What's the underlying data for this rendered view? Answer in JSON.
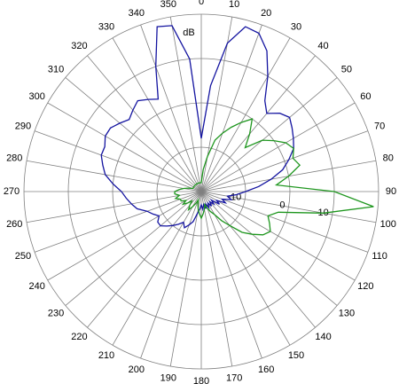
{
  "chart_data": {
    "type": "polar",
    "r_label": "dB",
    "rlim": [
      -20,
      20
    ],
    "rticks": [
      -10,
      0,
      10
    ],
    "thetaticks": [
      0,
      10,
      20,
      30,
      40,
      50,
      60,
      70,
      80,
      90,
      100,
      110,
      120,
      130,
      140,
      150,
      160,
      170,
      180,
      190,
      200,
      210,
      220,
      230,
      240,
      250,
      260,
      270,
      280,
      290,
      300,
      310,
      320,
      330,
      340,
      350
    ],
    "theta": [
      0,
      5,
      10,
      15,
      20,
      25,
      30,
      35,
      40,
      45,
      50,
      55,
      60,
      65,
      70,
      75,
      80,
      85,
      90,
      95,
      100,
      105,
      110,
      115,
      120,
      125,
      130,
      135,
      140,
      145,
      150,
      155,
      160,
      165,
      170,
      175,
      180,
      185,
      190,
      195,
      200,
      205,
      210,
      215,
      220,
      225,
      230,
      235,
      240,
      245,
      250,
      255,
      260,
      265,
      270,
      275,
      280,
      285,
      290,
      295,
      300,
      305,
      310,
      315,
      320,
      325,
      330,
      335,
      340,
      345,
      350,
      355
    ],
    "series": [
      {
        "color": "#1414a0",
        "values": [
          -8,
          4,
          14,
          18.5,
          18,
          15,
          10,
          5,
          3,
          5,
          6,
          5,
          4,
          3,
          1,
          -1,
          -4,
          -7,
          -10,
          -12,
          -14,
          -13,
          -15,
          -14,
          -16,
          -15,
          -17,
          -16,
          -17,
          -16,
          -17,
          -16,
          -17,
          -16,
          -17,
          -16,
          -17,
          -16,
          -15,
          -13,
          -12,
          -11,
          -12,
          -11,
          -10,
          -9,
          -8,
          -8,
          -9,
          -8,
          -7,
          -5,
          -4,
          -3,
          -2,
          0,
          2,
          3,
          4,
          4,
          5,
          5,
          4,
          3,
          4,
          5,
          4,
          3,
          10,
          18.5,
          18,
          10
        ]
      },
      {
        "color": "#1e961e",
        "values": [
          -18,
          -15,
          -12,
          -8,
          -6,
          -4,
          -2,
          0,
          -3,
          -6,
          -2,
          0,
          2,
          3,
          2,
          3,
          0,
          -3,
          10,
          19,
          8,
          -2,
          -4,
          -3,
          -2,
          -3,
          -5,
          -7,
          -10,
          -12,
          -14,
          -15,
          -16,
          -17,
          -16,
          -15,
          -14,
          -15,
          -16,
          -17,
          -18,
          -17,
          -16,
          -15,
          -16,
          -17,
          -16,
          -15,
          -16,
          -15,
          -15,
          -14,
          -15,
          -14,
          -14,
          -15,
          -16,
          -17,
          -18,
          -18,
          -18,
          -18,
          -18,
          -18,
          -18,
          -18,
          -18,
          -18,
          -18,
          -18,
          -18,
          -18
        ]
      }
    ]
  }
}
